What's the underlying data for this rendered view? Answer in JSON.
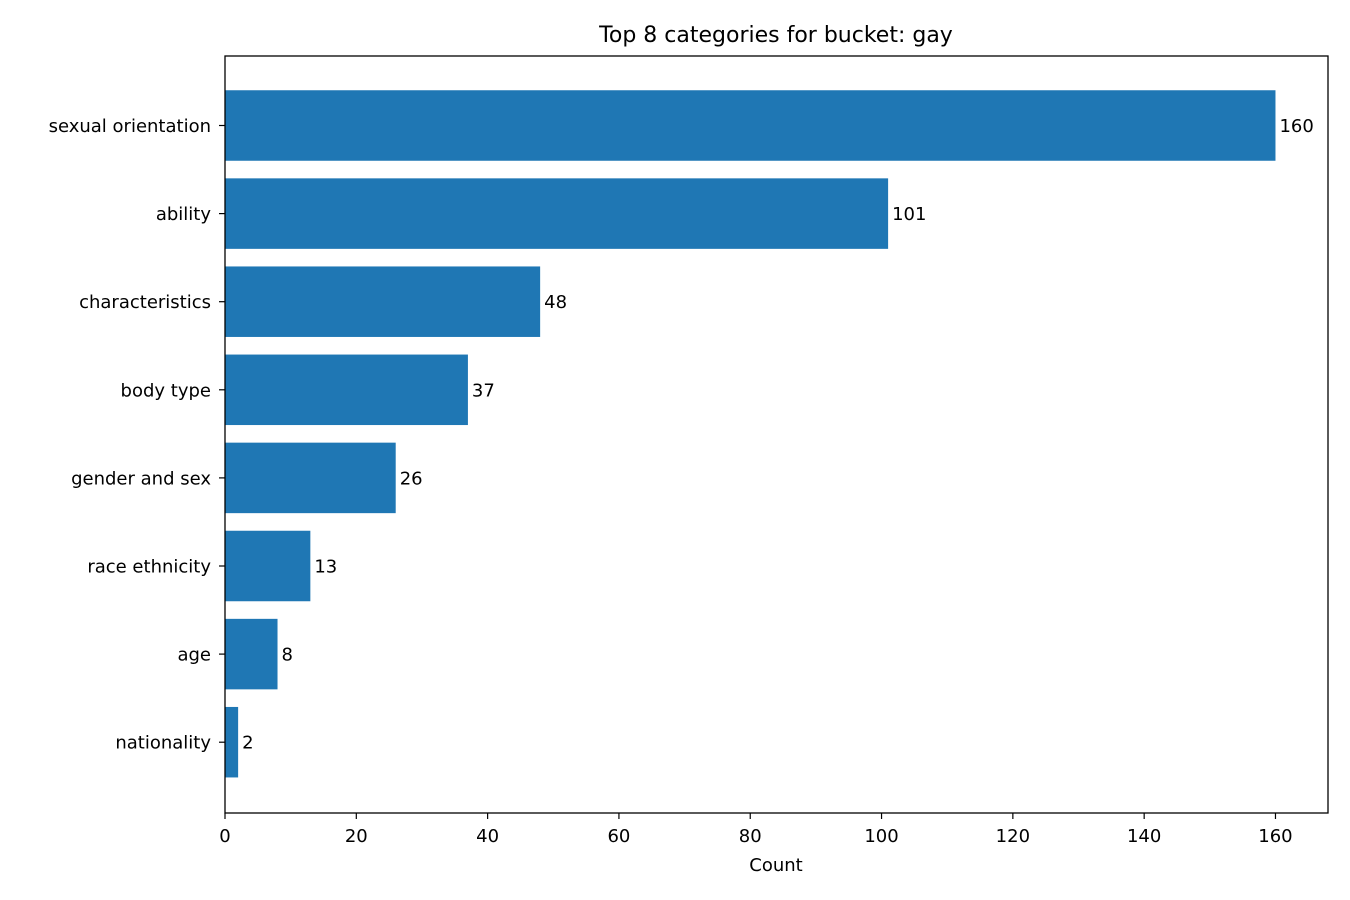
{
  "chart_data": {
    "type": "bar",
    "orientation": "horizontal",
    "title": "Top 8 categories for bucket: gay",
    "xlabel": "Count",
    "ylabel": "",
    "categories": [
      "sexual orientation",
      "ability",
      "characteristics",
      "body type",
      "gender and sex",
      "race ethnicity",
      "age",
      "nationality"
    ],
    "values": [
      160,
      101,
      48,
      37,
      26,
      13,
      8,
      2
    ],
    "data_labels": [
      "160",
      "101",
      "48",
      "37",
      "26",
      "13",
      "8",
      "2"
    ],
    "xlim": [
      0,
      168
    ],
    "x_ticks": [
      0,
      20,
      40,
      60,
      80,
      100,
      120,
      140,
      160
    ],
    "x_tick_labels": [
      "0",
      "20",
      "40",
      "60",
      "80",
      "100",
      "120",
      "140",
      "160"
    ],
    "grid": false,
    "bar_color": "#1f77b4"
  }
}
